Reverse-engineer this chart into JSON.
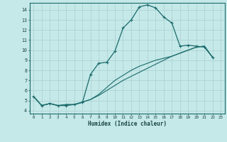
{
  "xlabel": "Humidex (Indice chaleur)",
  "bg_color": "#c5e8e8",
  "grid_color": "#aacfcf",
  "line_color": "#1a6b6b",
  "xlim": [
    -0.5,
    23.5
  ],
  "ylim": [
    3.7,
    14.7
  ],
  "xticks": [
    0,
    1,
    2,
    3,
    4,
    5,
    6,
    7,
    8,
    9,
    10,
    11,
    12,
    13,
    14,
    15,
    16,
    17,
    18,
    19,
    20,
    21,
    22,
    23
  ],
  "yticks": [
    4,
    5,
    6,
    7,
    8,
    9,
    10,
    11,
    12,
    13,
    14
  ],
  "line1_x": [
    0,
    1,
    2,
    3,
    4,
    5,
    6,
    7,
    8,
    9,
    10,
    11,
    12,
    13,
    14,
    15,
    16,
    17,
    18,
    19,
    20,
    21,
    22
  ],
  "line1_y": [
    5.4,
    4.5,
    4.7,
    4.5,
    4.5,
    4.6,
    4.8,
    7.6,
    8.7,
    8.8,
    9.9,
    12.2,
    13.0,
    14.3,
    14.5,
    14.2,
    13.3,
    12.7,
    10.4,
    10.5,
    10.4,
    10.3,
    9.3
  ],
  "line2_x": [
    0,
    1,
    2,
    3,
    4,
    5,
    6,
    7,
    8,
    9,
    10,
    11,
    12,
    13,
    14,
    15,
    16,
    17,
    18,
    19,
    20,
    21,
    22
  ],
  "line2_y": [
    5.4,
    4.5,
    4.7,
    4.5,
    4.6,
    4.6,
    4.85,
    5.1,
    5.5,
    6.0,
    6.5,
    7.0,
    7.4,
    7.8,
    8.2,
    8.6,
    9.0,
    9.4,
    9.7,
    10.0,
    10.3,
    10.4,
    9.3
  ],
  "line3_x": [
    0,
    1,
    2,
    3,
    4,
    5,
    6,
    7,
    8,
    9,
    10,
    11,
    12,
    13,
    14,
    15,
    16,
    17,
    18,
    19,
    20,
    21,
    22
  ],
  "line3_y": [
    5.4,
    4.5,
    4.7,
    4.5,
    4.6,
    4.6,
    4.85,
    5.1,
    5.6,
    6.3,
    7.0,
    7.5,
    8.0,
    8.4,
    8.7,
    9.0,
    9.2,
    9.4,
    9.7,
    10.0,
    10.3,
    10.4,
    9.3
  ]
}
